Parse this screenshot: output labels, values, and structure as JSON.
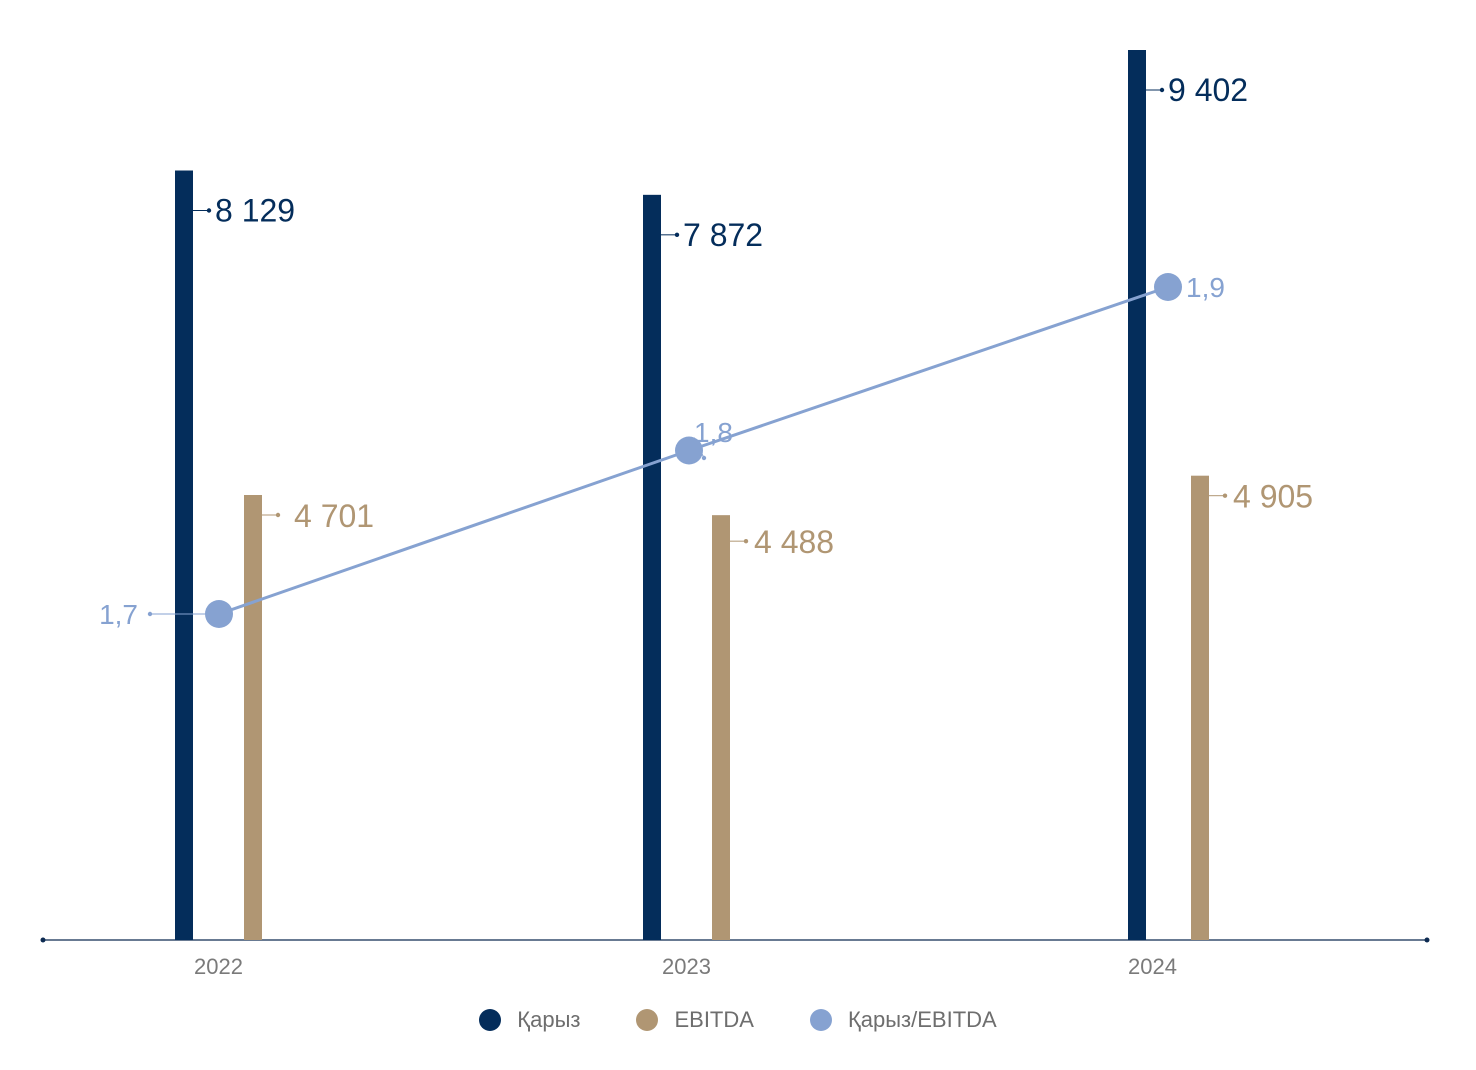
{
  "colors": {
    "debt": "#042d5b",
    "ebitda": "#b09673",
    "ratio": "#86a2d1",
    "axis": "#0d2b52",
    "tick_text": "#7a7a7a"
  },
  "legend": {
    "items": [
      {
        "label": "Қарыз",
        "color": "#042d5b"
      },
      {
        "label": "EBITDA",
        "color": "#b09673"
      },
      {
        "label": "Қарыз/EBITDA",
        "color": "#86a2d1"
      }
    ]
  },
  "chart_data": {
    "type": "bar",
    "categories": [
      "2022",
      "2023",
      "2024"
    ],
    "series": [
      {
        "name": "Қарыз",
        "type": "bar",
        "values": [
          8129,
          7872,
          9402
        ],
        "labels": [
          "8 129",
          "7 872",
          "9 402"
        ]
      },
      {
        "name": "EBITDA",
        "type": "bar",
        "values": [
          4701,
          4488,
          4905
        ],
        "labels": [
          "4 701",
          "4 488",
          "4 905"
        ]
      },
      {
        "name": "Қарыз/EBITDA",
        "type": "line",
        "values": [
          1.7,
          1.8,
          1.9
        ],
        "labels": [
          "1,7",
          "1,8",
          "1,9"
        ]
      }
    ],
    "ylim": [
      0,
      9402
    ],
    "grid": false,
    "legend_position": "bottom-center"
  }
}
